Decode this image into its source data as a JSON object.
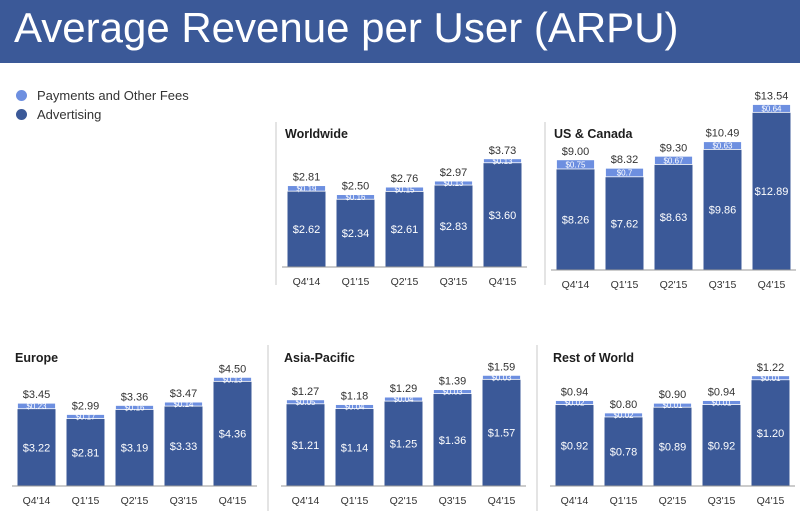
{
  "title": "Average Revenue per User (ARPU)",
  "colors": {
    "banner": "#3b5998",
    "advertising": "#3b5998",
    "payments": "#6d8fe0",
    "axis": "#999999"
  },
  "legend": [
    {
      "label": "Payments and Other Fees",
      "color": "#6d8fe0"
    },
    {
      "label": "Advertising",
      "color": "#3b5998"
    }
  ],
  "chart_data": [
    {
      "type": "bar",
      "stacked": true,
      "title": "Worldwide",
      "categories": [
        "Q4'14",
        "Q1'15",
        "Q2'15",
        "Q3'15",
        "Q4'15"
      ],
      "series": [
        {
          "name": "Advertising",
          "values": [
            2.62,
            2.34,
            2.61,
            2.83,
            3.6
          ],
          "labels": [
            "$2.62",
            "$2.34",
            "$2.61",
            "$2.83",
            "$3.60"
          ]
        },
        {
          "name": "Payments and Other Fees",
          "values": [
            0.19,
            0.16,
            0.15,
            0.13,
            0.13
          ],
          "labels": [
            "$0.19",
            "$0.16",
            "$0.15",
            "$0.13",
            "$0.13"
          ]
        }
      ],
      "totals": [
        2.81,
        2.5,
        2.76,
        2.97,
        3.73
      ],
      "total_labels": [
        "$2.81",
        "$2.50",
        "$2.76",
        "$2.97",
        "$3.73"
      ]
    },
    {
      "type": "bar",
      "stacked": true,
      "title": "US & Canada",
      "categories": [
        "Q4'14",
        "Q1'15",
        "Q2'15",
        "Q3'15",
        "Q4'15"
      ],
      "series": [
        {
          "name": "Advertising",
          "values": [
            8.26,
            7.62,
            8.63,
            9.86,
            12.89
          ],
          "labels": [
            "$8.26",
            "$7.62",
            "$8.63",
            "$9.86",
            "$12.89"
          ]
        },
        {
          "name": "Payments and Other Fees",
          "values": [
            0.75,
            0.7,
            0.67,
            0.63,
            0.64
          ],
          "labels": [
            "$0.75",
            "$0.7",
            "$0.67",
            "$0.63",
            "$0.64"
          ]
        }
      ],
      "totals": [
        9.0,
        8.32,
        9.3,
        10.49,
        13.54
      ],
      "total_labels": [
        "$9.00",
        "$8.32",
        "$9.30",
        "$10.49",
        "$13.54"
      ]
    },
    {
      "type": "bar",
      "stacked": true,
      "title": "Europe",
      "categories": [
        "Q4'14",
        "Q1'15",
        "Q2'15",
        "Q3'15",
        "Q4'15"
      ],
      "series": [
        {
          "name": "Advertising",
          "values": [
            3.22,
            2.81,
            3.19,
            3.33,
            4.36
          ],
          "labels": [
            "$3.22",
            "$2.81",
            "$3.19",
            "$3.33",
            "$4.36"
          ]
        },
        {
          "name": "Payments and Other Fees",
          "values": [
            0.23,
            0.17,
            0.16,
            0.14,
            0.13
          ],
          "labels": [
            "$0.23",
            "$0.17",
            "$0.16",
            "$0.14",
            "$0.13"
          ]
        }
      ],
      "totals": [
        3.45,
        2.99,
        3.36,
        3.47,
        4.5
      ],
      "total_labels": [
        "$3.45",
        "$2.99",
        "$3.36",
        "$3.47",
        "$4.50"
      ]
    },
    {
      "type": "bar",
      "stacked": true,
      "title": "Asia-Pacific",
      "categories": [
        "Q4'14",
        "Q1'15",
        "Q2'15",
        "Q3'15",
        "Q4'15"
      ],
      "series": [
        {
          "name": "Advertising",
          "values": [
            1.21,
            1.14,
            1.25,
            1.36,
            1.57
          ],
          "labels": [
            "$1.21",
            "$1.14",
            "$1.25",
            "$1.36",
            "$1.57"
          ]
        },
        {
          "name": "Payments and Other Fees",
          "values": [
            0.05,
            0.04,
            0.04,
            0.03,
            0.03
          ],
          "labels": [
            "$0.05",
            "$0.04",
            "$0.04",
            "$0.03",
            "$0.03"
          ]
        }
      ],
      "totals": [
        1.27,
        1.18,
        1.29,
        1.39,
        1.59
      ],
      "total_labels": [
        "$1.27",
        "$1.18",
        "$1.29",
        "$1.39",
        "$1.59"
      ]
    },
    {
      "type": "bar",
      "stacked": true,
      "title": "Rest of World",
      "categories": [
        "Q4'14",
        "Q1'15",
        "Q2'15",
        "Q3'15",
        "Q4'15"
      ],
      "series": [
        {
          "name": "Advertising",
          "values": [
            0.92,
            0.78,
            0.89,
            0.92,
            1.2
          ],
          "labels": [
            "$0.92",
            "$0.78",
            "$0.89",
            "$0.92",
            "$1.20"
          ]
        },
        {
          "name": "Payments and Other Fees",
          "values": [
            0.02,
            0.02,
            0.01,
            0.01,
            0.01
          ],
          "labels": [
            "$0.02",
            "$0.02",
            "$0.01",
            "$0.01",
            "$0.01"
          ]
        }
      ],
      "totals": [
        0.94,
        0.8,
        0.9,
        0.94,
        1.22
      ],
      "total_labels": [
        "$0.94",
        "$0.80",
        "$0.90",
        "$0.94",
        "$1.22"
      ]
    }
  ]
}
